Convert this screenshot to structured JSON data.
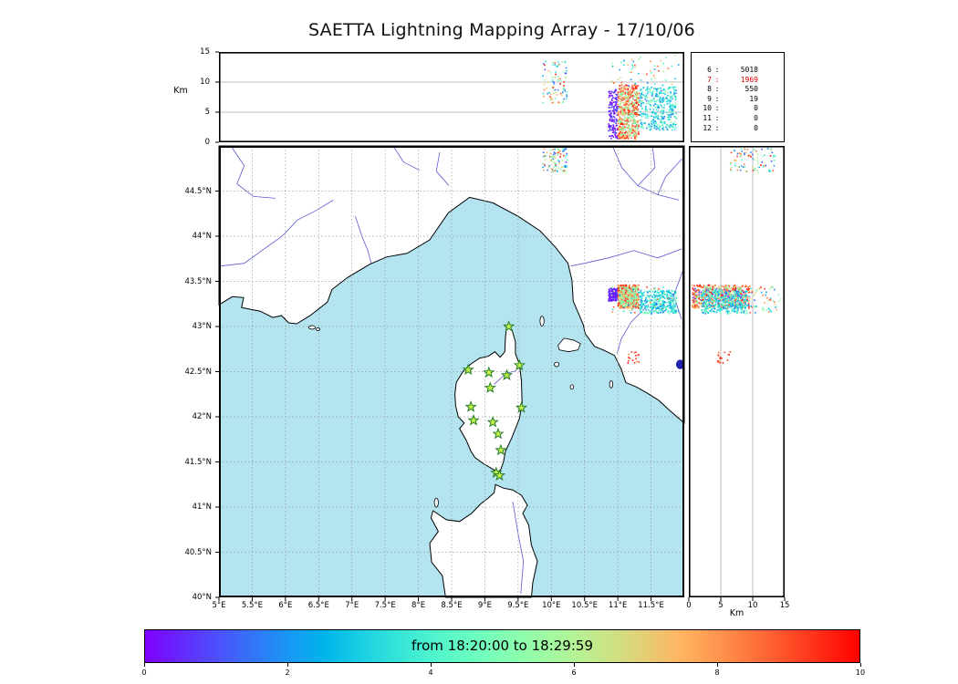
{
  "title": "SAETTA Lightning Mapping Array - 17/10/06",
  "labels": {
    "km_top": "Km",
    "km_right": "Km"
  },
  "colorbar": {
    "label": "from 18:20:00 to 18:29:59",
    "tick_labels": [
      "0",
      "2",
      "4",
      "6",
      "8",
      "10"
    ],
    "tick_values": [
      0,
      2,
      4,
      6,
      8,
      10
    ],
    "vmin": 0,
    "vmax": 10
  },
  "axes": {
    "lon_min": 5,
    "lon_max": 12,
    "lat_min": 40,
    "lat_max": 45,
    "alt_min": 0,
    "alt_max": 15,
    "lon_tick_values": [
      5,
      5.5,
      6,
      6.5,
      7,
      7.5,
      8,
      8.5,
      9,
      9.5,
      10,
      10.5,
      11,
      11.5
    ],
    "lon_tick_labels": [
      "5°E",
      "5.5°E",
      "6°E",
      "6.5°E",
      "7°E",
      "7.5°E",
      "8°E",
      "8.5°E",
      "9°E",
      "9.5°E",
      "10°E",
      "10.5°E",
      "11°E",
      "11.5°E"
    ],
    "lat_tick_values": [
      44.5,
      44,
      43.5,
      43,
      42.5,
      42,
      41.5,
      41,
      40.5,
      40
    ],
    "lat_tick_labels": [
      "44.5°N",
      "44°N",
      "43.5°N",
      "43°N",
      "42.5°N",
      "42°N",
      "41.5°N",
      "41°N",
      "40.5°N",
      "40°N"
    ],
    "alt_tick_values_top": [
      15,
      10,
      5,
      0
    ],
    "alt_tick_labels_top": [
      "15",
      "10",
      "5",
      "0"
    ],
    "alt_tick_values_right": [
      0,
      5,
      10,
      15
    ],
    "alt_tick_labels_right": [
      "0",
      "5",
      "10",
      "15"
    ],
    "grid_alt_values": [
      5,
      10
    ]
  },
  "colors": {
    "sea": "#b4e4f0",
    "land": "#ffffff",
    "coast": "#000000",
    "river": "#4747cc",
    "lake": "#2121b0",
    "grid_map": "#999999",
    "grid_alt": "#aaaaaa",
    "station_fill": "#c0f04a",
    "station_edge": "#267d26",
    "highlight_red": "#e00000"
  },
  "map": {
    "mainland": [
      [
        5.0,
        43.24
      ],
      [
        5.2,
        43.33
      ],
      [
        5.37,
        43.32
      ],
      [
        5.34,
        43.21
      ],
      [
        5.62,
        43.17
      ],
      [
        5.81,
        43.1
      ],
      [
        5.94,
        43.12
      ],
      [
        6.05,
        43.04
      ],
      [
        6.17,
        43.03
      ],
      [
        6.37,
        43.12
      ],
      [
        6.63,
        43.27
      ],
      [
        6.7,
        43.41
      ],
      [
        6.93,
        43.54
      ],
      [
        7.27,
        43.69
      ],
      [
        7.52,
        43.77
      ],
      [
        7.83,
        43.81
      ],
      [
        8.17,
        43.96
      ],
      [
        8.45,
        44.26
      ],
      [
        8.77,
        44.43
      ],
      [
        9.12,
        44.37
      ],
      [
        9.5,
        44.22
      ],
      [
        9.83,
        44.06
      ],
      [
        10.06,
        43.88
      ],
      [
        10.25,
        43.7
      ],
      [
        10.31,
        43.51
      ],
      [
        10.33,
        43.28
      ],
      [
        10.48,
        43.02
      ],
      [
        10.51,
        42.92
      ],
      [
        10.65,
        42.78
      ],
      [
        10.78,
        42.74
      ],
      [
        10.95,
        42.68
      ],
      [
        11.05,
        42.53
      ],
      [
        11.12,
        42.38
      ],
      [
        11.28,
        42.33
      ],
      [
        11.45,
        42.26
      ],
      [
        11.62,
        42.18
      ],
      [
        11.78,
        42.07
      ],
      [
        12.0,
        41.93
      ],
      [
        12.0,
        45.0
      ],
      [
        5.0,
        45.0
      ]
    ],
    "corsica": [
      [
        9.33,
        43.01
      ],
      [
        9.41,
        42.96
      ],
      [
        9.46,
        42.83
      ],
      [
        9.46,
        42.7
      ],
      [
        9.52,
        42.58
      ],
      [
        9.55,
        42.4
      ],
      [
        9.56,
        42.15
      ],
      [
        9.52,
        41.98
      ],
      [
        9.4,
        41.76
      ],
      [
        9.31,
        41.62
      ],
      [
        9.28,
        41.5
      ],
      [
        9.22,
        41.38
      ],
      [
        9.12,
        41.42
      ],
      [
        8.98,
        41.48
      ],
      [
        8.85,
        41.55
      ],
      [
        8.79,
        41.62
      ],
      [
        8.72,
        41.74
      ],
      [
        8.62,
        41.87
      ],
      [
        8.69,
        41.93
      ],
      [
        8.6,
        42.0
      ],
      [
        8.56,
        42.12
      ],
      [
        8.55,
        42.25
      ],
      [
        8.57,
        42.38
      ],
      [
        8.67,
        42.5
      ],
      [
        8.78,
        42.58
      ],
      [
        8.92,
        42.65
      ],
      [
        9.05,
        42.67
      ],
      [
        9.15,
        42.72
      ],
      [
        9.23,
        42.66
      ],
      [
        9.3,
        42.72
      ],
      [
        9.31,
        42.88
      ]
    ],
    "sardinia": [
      [
        8.41,
        40.0
      ],
      [
        8.36,
        40.24
      ],
      [
        8.2,
        40.39
      ],
      [
        8.17,
        40.6
      ],
      [
        8.3,
        40.73
      ],
      [
        8.19,
        40.88
      ],
      [
        8.22,
        40.96
      ],
      [
        8.42,
        40.86
      ],
      [
        8.62,
        40.84
      ],
      [
        8.8,
        40.93
      ],
      [
        8.93,
        41.03
      ],
      [
        9.05,
        41.1
      ],
      [
        9.14,
        41.16
      ],
      [
        9.16,
        41.25
      ],
      [
        9.28,
        41.21
      ],
      [
        9.42,
        41.19
      ],
      [
        9.55,
        41.13
      ],
      [
        9.64,
        41.02
      ],
      [
        9.57,
        40.93
      ],
      [
        9.66,
        40.8
      ],
      [
        9.7,
        40.58
      ],
      [
        9.79,
        40.4
      ],
      [
        9.72,
        40.16
      ],
      [
        9.7,
        40.0
      ]
    ],
    "elba": [
      [
        10.1,
        42.79
      ],
      [
        10.19,
        42.87
      ],
      [
        10.33,
        42.85
      ],
      [
        10.44,
        42.81
      ],
      [
        10.4,
        42.74
      ],
      [
        10.26,
        42.72
      ],
      [
        10.12,
        42.74
      ]
    ],
    "islands": [
      {
        "lon": 9.86,
        "lat": 43.06,
        "rx": 0.03,
        "ry": 0.055
      },
      {
        "lon": 10.08,
        "lat": 42.58,
        "rx": 0.035,
        "ry": 0.025
      },
      {
        "lon": 10.31,
        "lat": 42.33,
        "rx": 0.025,
        "ry": 0.025
      },
      {
        "lon": 10.9,
        "lat": 42.36,
        "rx": 0.025,
        "ry": 0.04
      },
      {
        "lon": 8.27,
        "lat": 41.05,
        "rx": 0.03,
        "ry": 0.05
      },
      {
        "lon": 6.4,
        "lat": 42.99,
        "rx": 0.05,
        "ry": 0.02
      },
      {
        "lon": 6.49,
        "lat": 42.97,
        "rx": 0.03,
        "ry": 0.015
      }
    ],
    "lakes": [
      {
        "lon": 11.94,
        "lat": 42.58,
        "rx": 0.065,
        "ry": 0.052
      }
    ],
    "rivers": [
      [
        [
          6.72,
          44.4
        ],
        [
          6.45,
          44.28
        ],
        [
          6.18,
          44.18
        ],
        [
          5.95,
          44.0
        ],
        [
          5.68,
          43.86
        ],
        [
          5.38,
          43.7
        ],
        [
          5.03,
          43.67
        ]
      ],
      [
        [
          5.18,
          45.0
        ],
        [
          5.38,
          44.78
        ],
        [
          5.27,
          44.58
        ],
        [
          5.52,
          44.44
        ],
        [
          5.85,
          44.42
        ]
      ],
      [
        [
          7.05,
          44.22
        ],
        [
          7.16,
          43.98
        ],
        [
          7.24,
          43.84
        ],
        [
          7.29,
          43.7
        ]
      ],
      [
        [
          7.62,
          45.0
        ],
        [
          7.78,
          44.82
        ],
        [
          8.02,
          44.73
        ]
      ],
      [
        [
          8.32,
          44.93
        ],
        [
          8.27,
          44.72
        ],
        [
          8.46,
          44.56
        ]
      ],
      [
        [
          10.92,
          45.0
        ],
        [
          11.06,
          44.76
        ],
        [
          11.3,
          44.56
        ],
        [
          11.6,
          44.46
        ],
        [
          11.92,
          44.4
        ]
      ],
      [
        [
          11.52,
          45.0
        ],
        [
          11.56,
          44.76
        ],
        [
          11.3,
          44.56
        ]
      ],
      [
        [
          11.97,
          44.86
        ],
        [
          11.72,
          44.66
        ],
        [
          11.6,
          44.46
        ]
      ],
      [
        [
          11.96,
          43.86
        ],
        [
          11.6,
          43.76
        ],
        [
          11.24,
          43.84
        ],
        [
          10.86,
          43.76
        ],
        [
          10.5,
          43.7
        ],
        [
          10.29,
          43.67
        ]
      ],
      [
        [
          11.98,
          43.62
        ],
        [
          11.84,
          43.34
        ],
        [
          11.96,
          43.08
        ]
      ],
      [
        [
          11.46,
          43.24
        ],
        [
          11.2,
          43.05
        ],
        [
          11.05,
          42.86
        ],
        [
          10.99,
          42.7
        ]
      ],
      [
        [
          9.42,
          41.06
        ],
        [
          9.5,
          40.7
        ],
        [
          9.58,
          40.4
        ],
        [
          9.54,
          40.04
        ]
      ],
      [
        [
          9.14,
          42.36
        ],
        [
          9.32,
          42.48
        ],
        [
          9.47,
          42.51
        ]
      ]
    ]
  },
  "chart_data": {
    "type": "scatter",
    "panels": [
      "altitude-vs-longitude",
      "map-lon-lat",
      "altitude-vs-latitude"
    ],
    "time_window": "from 18:20:00 to 18:29:59",
    "color_scale": "rainbow, 0-10 minutes within window",
    "station_counts": {
      "rows": [
        [
          "6",
          "5018"
        ],
        [
          "7",
          "1969"
        ],
        [
          "8",
          "550"
        ],
        [
          "9",
          "19"
        ],
        [
          "10",
          "0"
        ],
        [
          "11",
          "0"
        ],
        [
          "12",
          "0"
        ]
      ],
      "highlight_row": 1
    },
    "stations_lonlat": [
      [
        9.36,
        43.0
      ],
      [
        8.75,
        42.52
      ],
      [
        9.06,
        42.49
      ],
      [
        9.33,
        42.46
      ],
      [
        9.52,
        42.57
      ],
      [
        9.08,
        42.32
      ],
      [
        8.79,
        42.11
      ],
      [
        9.55,
        42.1
      ],
      [
        8.83,
        41.96
      ],
      [
        9.12,
        41.94
      ],
      [
        9.2,
        41.81
      ],
      [
        9.24,
        41.63
      ],
      [
        9.17,
        41.38
      ],
      [
        9.22,
        41.35
      ]
    ],
    "clusters": [
      {
        "name": "north-cell",
        "n": 90,
        "lon": [
          9.87,
          10.24
        ],
        "lat": [
          44.7,
          44.97
        ],
        "alt": [
          6.5,
          13.5
        ],
        "t": [
          0.05,
          1.0
        ]
      },
      {
        "name": "east-cell-early",
        "n": 150,
        "lon": [
          10.86,
          11.0
        ],
        "lat": [
          43.28,
          43.42
        ],
        "alt": [
          0.5,
          8.8
        ],
        "t": [
          0.0,
          0.1
        ]
      },
      {
        "name": "east-cell-late",
        "n": 400,
        "lon": [
          11.0,
          11.32
        ],
        "lat": [
          43.2,
          43.46
        ],
        "alt": [
          0.5,
          9.5
        ],
        "t": [
          0.72,
          1.0
        ]
      },
      {
        "name": "east-cell-mid2",
        "n": 150,
        "lon": [
          11.02,
          11.3
        ],
        "lat": [
          43.22,
          43.44
        ],
        "alt": [
          1.0,
          8.5
        ],
        "t": [
          0.45,
          0.65
        ]
      },
      {
        "name": "east-cell-mid",
        "n": 380,
        "lon": [
          11.33,
          11.88
        ],
        "lat": [
          43.14,
          43.4
        ],
        "alt": [
          2.0,
          9.2
        ],
        "t": [
          0.15,
          0.52
        ]
      },
      {
        "name": "east-cell-high",
        "n": 60,
        "lon": [
          10.9,
          11.95
        ],
        "lat": [
          43.15,
          43.45
        ],
        "alt": [
          9.2,
          14.5
        ],
        "t": [
          0.1,
          0.95
        ]
      },
      {
        "name": "south-small-cell",
        "n": 16,
        "lon": [
          11.15,
          11.32
        ],
        "lat": [
          42.58,
          42.72
        ],
        "alt": [
          4.5,
          6.5
        ],
        "t": [
          0.82,
          1.0
        ]
      }
    ]
  }
}
